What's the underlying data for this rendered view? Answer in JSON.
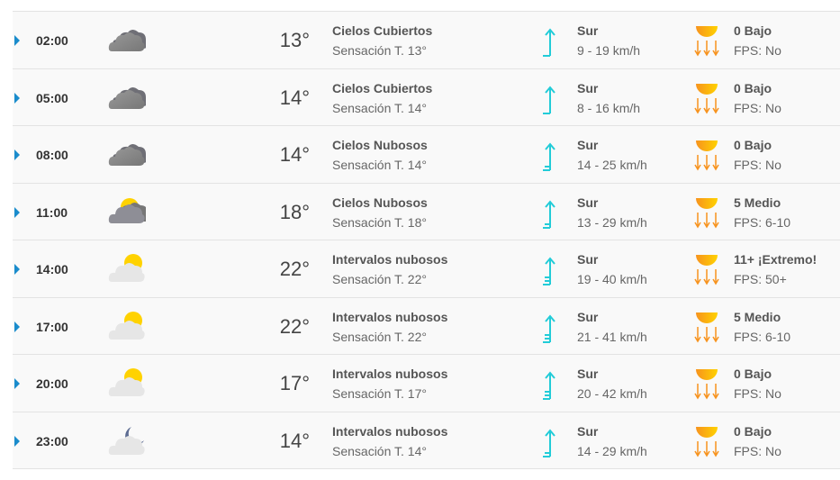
{
  "colors": {
    "expand": "#1a8ccc",
    "wind": "#22ccd8",
    "uv": "#f7931e",
    "sun": "#ffd200",
    "cloud": "#888888"
  },
  "rows": [
    {
      "time": "02:00",
      "icon": "overcast-icon",
      "temp": "13°",
      "condition": "Cielos Cubiertos",
      "feels": "Sensación T. 13°",
      "wind_dir": "Sur",
      "wind_speed": "9 - 19 km/h",
      "wind_flags": 1,
      "uv": "0 Bajo",
      "fps": "FPS: No"
    },
    {
      "time": "05:00",
      "icon": "overcast-icon",
      "temp": "14°",
      "condition": "Cielos Cubiertos",
      "feels": "Sensación T. 14°",
      "wind_dir": "Sur",
      "wind_speed": "8 - 16 km/h",
      "wind_flags": 1,
      "uv": "0 Bajo",
      "fps": "FPS: No"
    },
    {
      "time": "08:00",
      "icon": "overcast-icon",
      "temp": "14°",
      "condition": "Cielos Nubosos",
      "feels": "Sensación T. 14°",
      "wind_dir": "Sur",
      "wind_speed": "14 - 25 km/h",
      "wind_flags": 2,
      "uv": "0 Bajo",
      "fps": "FPS: No"
    },
    {
      "time": "11:00",
      "icon": "cloudy-sun-icon",
      "temp": "18°",
      "condition": "Cielos Nubosos",
      "feels": "Sensación T. 18°",
      "wind_dir": "Sur",
      "wind_speed": "13 - 29 km/h",
      "wind_flags": 2,
      "uv": "5 Medio",
      "fps": "FPS: 6-10"
    },
    {
      "time": "14:00",
      "icon": "partly-cloudy-icon",
      "temp": "22°",
      "condition": "Intervalos nubosos",
      "feels": "Sensación T. 22°",
      "wind_dir": "Sur",
      "wind_speed": "19 - 40 km/h",
      "wind_flags": 3,
      "uv": "11+ ¡Extremo!",
      "fps": "FPS: 50+"
    },
    {
      "time": "17:00",
      "icon": "partly-cloudy-icon",
      "temp": "22°",
      "condition": "Intervalos nubosos",
      "feels": "Sensación T. 22°",
      "wind_dir": "Sur",
      "wind_speed": "21 - 41 km/h",
      "wind_flags": 3,
      "uv": "5 Medio",
      "fps": "FPS: 6-10"
    },
    {
      "time": "20:00",
      "icon": "partly-cloudy-icon",
      "temp": "17°",
      "condition": "Intervalos nubosos",
      "feels": "Sensación T. 17°",
      "wind_dir": "Sur",
      "wind_speed": "20 - 42 km/h",
      "wind_flags": 3,
      "uv": "0 Bajo",
      "fps": "FPS: No"
    },
    {
      "time": "23:00",
      "icon": "partly-cloudy-night-icon",
      "temp": "14°",
      "condition": "Intervalos nubosos",
      "feels": "Sensación T. 14°",
      "wind_dir": "Sur",
      "wind_speed": "14 - 29 km/h",
      "wind_flags": 2,
      "uv": "0 Bajo",
      "fps": "FPS: No"
    }
  ]
}
